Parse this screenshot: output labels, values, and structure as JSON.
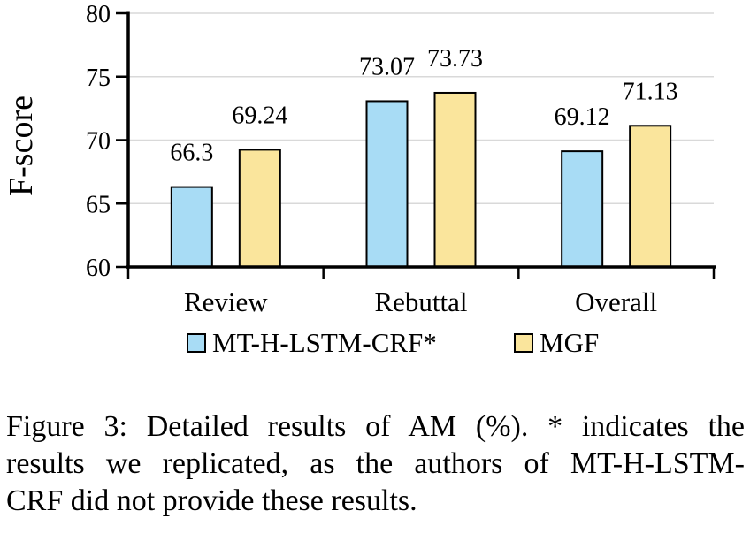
{
  "figure": {
    "caption_lines": [
      "Figure 3: Detailed results of AM (%). * indicates the",
      "results we replicated, as the authors of MT-H-LSTM-",
      "CRF did not provide these results."
    ]
  },
  "chart_data": {
    "type": "bar",
    "title": "",
    "xlabel": "",
    "ylabel": "F-score",
    "categories": [
      "Review",
      "Rebuttal",
      "Overall"
    ],
    "series": [
      {
        "name": "MT-H-LSTM-CRF*",
        "color": "#A8DCF5",
        "values": [
          66.3,
          73.07,
          69.12
        ],
        "value_labels": [
          "66.3",
          "73.07",
          "69.12"
        ]
      },
      {
        "name": "MGF",
        "color": "#FAE59C",
        "values": [
          69.24,
          73.73,
          71.13
        ],
        "value_labels": [
          "69.24",
          "73.73",
          "71.13"
        ]
      }
    ],
    "ylim": [
      60,
      80
    ],
    "yticks": [
      60,
      65,
      70,
      75,
      80
    ],
    "grid": "horizontal",
    "gridline_color": "#D9D9D9",
    "axis_color": "#000000",
    "bar_border_color": "#000000",
    "legend_position": "bottom"
  }
}
